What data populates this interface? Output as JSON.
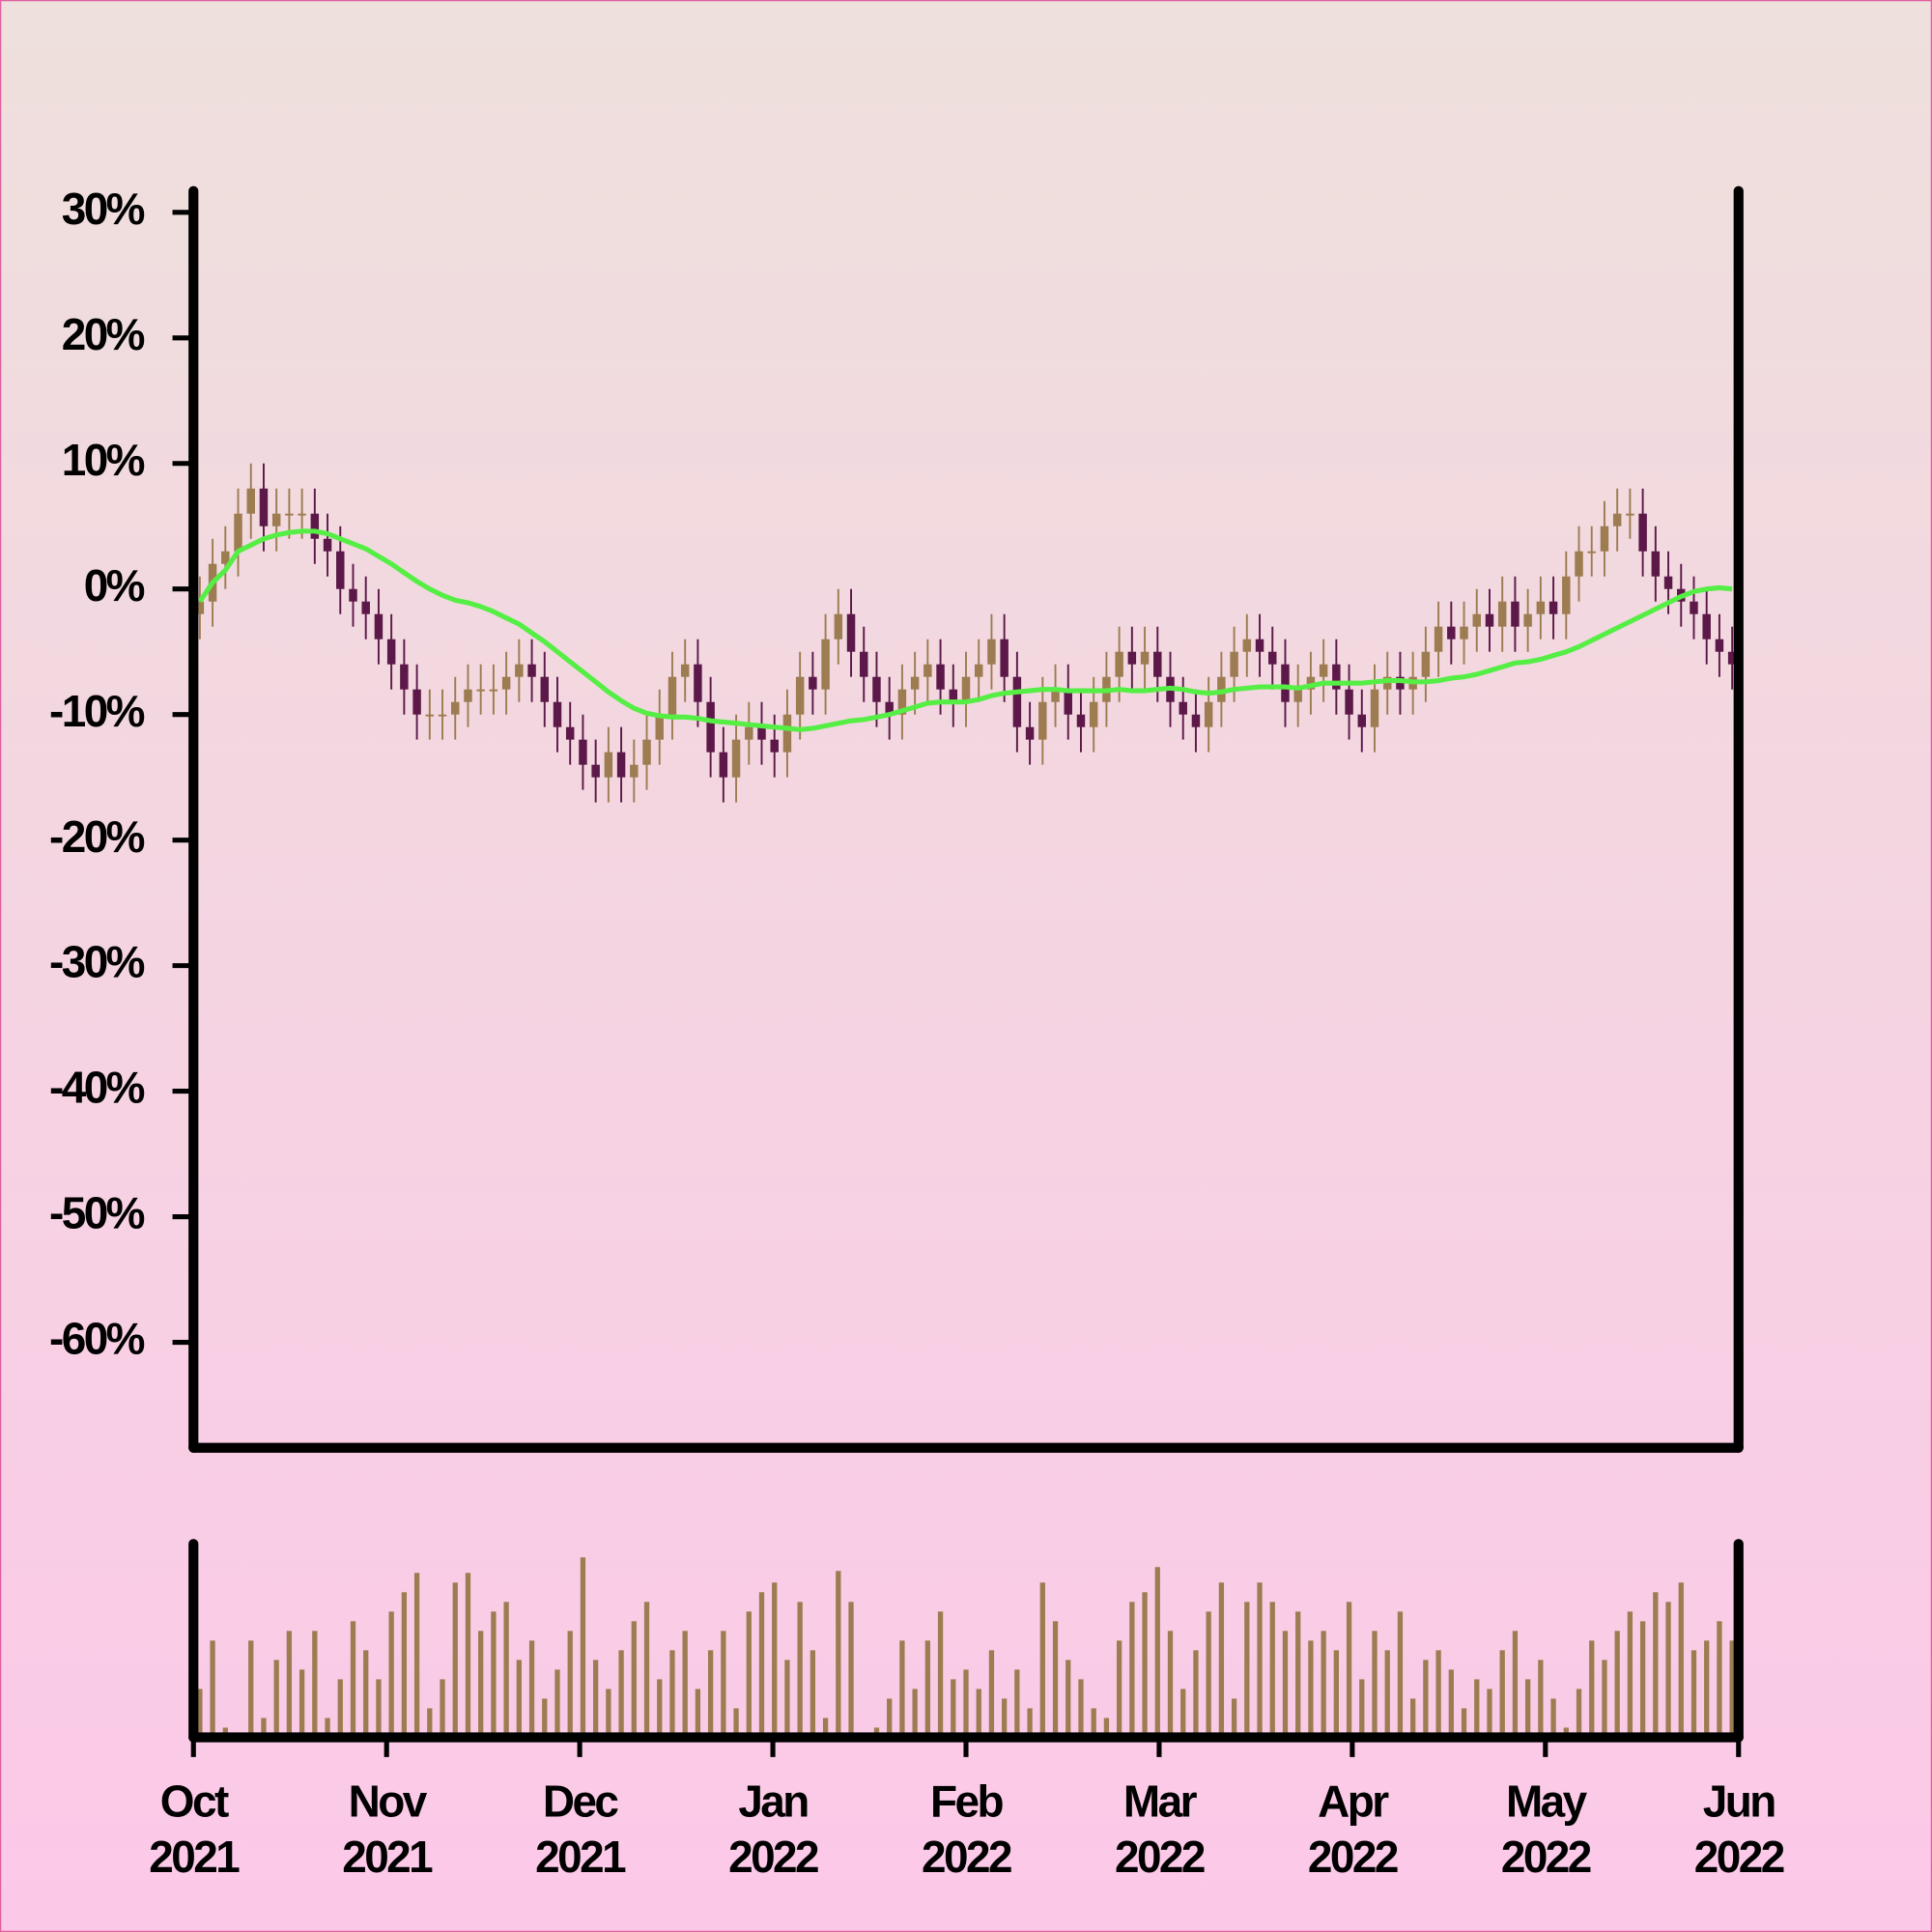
{
  "chart_data": {
    "type": "candlestick",
    "open": [
      -2,
      -1,
      2,
      3,
      6,
      8,
      5,
      6,
      6,
      6,
      4,
      3,
      0,
      -1,
      -2,
      -4,
      -6,
      -8,
      -10,
      -10,
      -10,
      -9,
      -8,
      -8,
      -8,
      -7,
      -6,
      -7,
      -9,
      -11,
      -12,
      -14,
      -15,
      -13,
      -15,
      -14,
      -12,
      -10,
      -7,
      -6,
      -9,
      -13,
      -15,
      -12,
      -11,
      -12,
      -13,
      -10,
      -7,
      -8,
      -4,
      -2,
      -5,
      -7,
      -9,
      -10,
      -8,
      -7,
      -6,
      -8,
      -9,
      -7,
      -6,
      -4,
      -7,
      -11,
      -12,
      -9,
      -8,
      -10,
      -11,
      -9,
      -7,
      -5,
      -6,
      -5,
      -7,
      -9,
      -10,
      -11,
      -9,
      -7,
      -5,
      -4,
      -5,
      -6,
      -9,
      -8,
      -7,
      -6,
      -8,
      -10,
      -11,
      -8,
      -7,
      -8,
      -7,
      -5,
      -3,
      -4,
      -3,
      -2,
      -3,
      -1,
      -3,
      -2,
      -1,
      -2,
      1,
      3,
      3,
      5,
      6,
      6,
      3,
      1,
      0,
      -1,
      -2,
      -4,
      -5
    ],
    "high": [
      1,
      4,
      5,
      8,
      10,
      10,
      8,
      8,
      8,
      8,
      6,
      5,
      2,
      1,
      0,
      -2,
      -4,
      -6,
      -8,
      -8,
      -7,
      -6,
      -6,
      -6,
      -5,
      -4,
      -4,
      -5,
      -7,
      -9,
      -10,
      -12,
      -11,
      -11,
      -12,
      -10,
      -8,
      -5,
      -4,
      -4,
      -7,
      -11,
      -10,
      -9,
      -9,
      -10,
      -8,
      -5,
      -5,
      -2,
      0,
      0,
      -3,
      -5,
      -7,
      -6,
      -5,
      -4,
      -4,
      -6,
      -5,
      -4,
      -2,
      -2,
      -5,
      -9,
      -7,
      -6,
      -6,
      -8,
      -7,
      -5,
      -3,
      -3,
      -3,
      -3,
      -5,
      -7,
      -8,
      -7,
      -5,
      -3,
      -2,
      -2,
      -3,
      -4,
      -6,
      -5,
      -4,
      -4,
      -6,
      -8,
      -6,
      -5,
      -5,
      -5,
      -3,
      -1,
      -1,
      -1,
      0,
      0,
      1,
      1,
      0,
      1,
      1,
      3,
      5,
      5,
      7,
      8,
      8,
      8,
      5,
      3,
      2,
      1,
      0,
      -2,
      -3
    ],
    "low": [
      -4,
      -3,
      0,
      1,
      4,
      3,
      3,
      4,
      4,
      2,
      1,
      -2,
      -3,
      -4,
      -6,
      -8,
      -10,
      -12,
      -12,
      -12,
      -12,
      -11,
      -10,
      -10,
      -10,
      -9,
      -9,
      -11,
      -13,
      -14,
      -16,
      -17,
      -17,
      -17,
      -17,
      -16,
      -14,
      -12,
      -9,
      -11,
      -15,
      -17,
      -17,
      -14,
      -14,
      -15,
      -15,
      -12,
      -10,
      -10,
      -6,
      -7,
      -9,
      -11,
      -12,
      -12,
      -10,
      -9,
      -10,
      -11,
      -11,
      -9,
      -8,
      -9,
      -13,
      -14,
      -14,
      -11,
      -12,
      -13,
      -13,
      -11,
      -9,
      -8,
      -8,
      -9,
      -11,
      -12,
      -13,
      -13,
      -11,
      -9,
      -7,
      -7,
      -8,
      -11,
      -11,
      -10,
      -9,
      -10,
      -12,
      -13,
      -13,
      -10,
      -10,
      -10,
      -9,
      -7,
      -6,
      -6,
      -5,
      -5,
      -5,
      -5,
      -5,
      -4,
      -4,
      -4,
      -1,
      1,
      1,
      3,
      4,
      1,
      -1,
      -2,
      -3,
      -4,
      -6,
      -7,
      -8
    ],
    "close": [
      -1,
      2,
      3,
      6,
      8,
      5,
      6,
      6,
      6,
      4,
      3,
      0,
      -1,
      -2,
      -4,
      -6,
      -8,
      -10,
      -10,
      -10,
      -9,
      -8,
      -8,
      -8,
      -7,
      -6,
      -7,
      -9,
      -11,
      -12,
      -14,
      -15,
      -13,
      -15,
      -14,
      -12,
      -10,
      -7,
      -6,
      -9,
      -13,
      -15,
      -12,
      -11,
      -12,
      -13,
      -10,
      -7,
      -8,
      -4,
      -2,
      -5,
      -7,
      -9,
      -10,
      -8,
      -7,
      -6,
      -8,
      -9,
      -7,
      -6,
      -4,
      -7,
      -11,
      -12,
      -9,
      -8,
      -10,
      -11,
      -9,
      -7,
      -5,
      -6,
      -5,
      -7,
      -9,
      -10,
      -11,
      -9,
      -7,
      -5,
      -4,
      -5,
      -6,
      -9,
      -8,
      -7,
      -6,
      -8,
      -10,
      -11,
      -8,
      -7,
      -8,
      -7,
      -5,
      -3,
      -4,
      -3,
      -2,
      -3,
      -1,
      -3,
      -2,
      -1,
      -2,
      1,
      3,
      3,
      5,
      6,
      6,
      3,
      1,
      0,
      -1,
      -2,
      -4,
      -5,
      -6
    ],
    "moving_average": [
      -1,
      0.5,
      1.5,
      3,
      3.5,
      4,
      4.3,
      4.5,
      4.6,
      4.6,
      4.4,
      4,
      3.6,
      3.2,
      2.6,
      2,
      1.3,
      0.6,
      0,
      -0.5,
      -0.9,
      -1.1,
      -1.4,
      -1.8,
      -2.3,
      -2.8,
      -3.5,
      -4.2,
      -5,
      -5.8,
      -6.6,
      -7.4,
      -8.2,
      -8.9,
      -9.5,
      -9.9,
      -10.1,
      -10.2,
      -10.2,
      -10.3,
      -10.5,
      -10.6,
      -10.7,
      -10.8,
      -10.9,
      -11,
      -11.1,
      -11.2,
      -11.1,
      -10.9,
      -10.7,
      -10.5,
      -10.4,
      -10.2,
      -10,
      -9.7,
      -9.4,
      -9.1,
      -9,
      -9,
      -9,
      -8.8,
      -8.5,
      -8.3,
      -8.2,
      -8.1,
      -8,
      -8,
      -8.1,
      -8.1,
      -8.1,
      -8.1,
      -8,
      -8.1,
      -8.1,
      -8,
      -7.9,
      -8,
      -8.2,
      -8.3,
      -8.2,
      -8,
      -7.9,
      -7.8,
      -7.8,
      -7.8,
      -7.9,
      -7.7,
      -7.5,
      -7.5,
      -7.5,
      -7.5,
      -7.4,
      -7.3,
      -7.3,
      -7.4,
      -7.4,
      -7.3,
      -7.1,
      -7,
      -6.8,
      -6.5,
      -6.2,
      -5.9,
      -5.8,
      -5.6,
      -5.3,
      -5,
      -4.6,
      -4.1,
      -3.6,
      -3.1,
      -2.6,
      -2.1,
      -1.6,
      -1.1,
      -0.6,
      -0.2,
      0,
      0.1,
      0
    ],
    "volume": [
      25,
      50,
      5,
      2,
      50,
      10,
      40,
      55,
      35,
      55,
      10,
      30,
      60,
      45,
      30,
      65,
      75,
      85,
      15,
      30,
      80,
      85,
      55,
      65,
      70,
      40,
      50,
      20,
      35,
      55,
      93,
      40,
      25,
      45,
      60,
      70,
      30,
      45,
      55,
      25,
      45,
      55,
      15,
      65,
      75,
      80,
      40,
      70,
      45,
      10,
      86,
      70,
      2,
      5,
      20,
      50,
      25,
      50,
      65,
      30,
      35,
      25,
      45,
      20,
      35,
      15,
      80,
      60,
      40,
      30,
      15,
      10,
      50,
      70,
      75,
      88,
      55,
      25,
      45,
      65,
      80,
      20,
      70,
      80,
      70,
      55,
      65,
      50,
      55,
      45,
      70,
      30,
      55,
      45,
      65,
      20,
      40,
      45,
      35,
      15,
      30,
      25,
      45,
      55,
      30,
      40,
      20,
      5,
      25,
      50,
      40,
      55,
      65,
      60,
      75,
      70,
      80,
      45,
      50,
      60,
      50
    ],
    "volume_ylim": [
      0,
      100
    ],
    "up_color": "#9c7c50",
    "down_color": "#5c1848",
    "ma_color": "#55ee44",
    "ylim": [
      -68.4,
      31.7
    ],
    "yticks": [
      {
        "value": -60,
        "label": "-60%"
      },
      {
        "value": -50,
        "label": "-50%"
      },
      {
        "value": -40,
        "label": "-40%"
      },
      {
        "value": -30,
        "label": "-30%"
      },
      {
        "value": -20,
        "label": "-20%"
      },
      {
        "value": -10,
        "label": "-10%"
      },
      {
        "value": 0,
        "label": "0%"
      },
      {
        "value": 10,
        "label": "10%"
      },
      {
        "value": 20,
        "label": "20%"
      },
      {
        "value": 30,
        "label": "30%"
      }
    ],
    "xticks": [
      [
        "Oct",
        "2021"
      ],
      [
        "Nov",
        "2021"
      ],
      [
        "Dec",
        "2021"
      ],
      [
        "Jan",
        "2022"
      ],
      [
        "Feb",
        "2022"
      ],
      [
        "Mar",
        "2022"
      ],
      [
        "Apr",
        "2022"
      ],
      [
        "May",
        "2022"
      ],
      [
        "Jun",
        "2022"
      ]
    ]
  }
}
